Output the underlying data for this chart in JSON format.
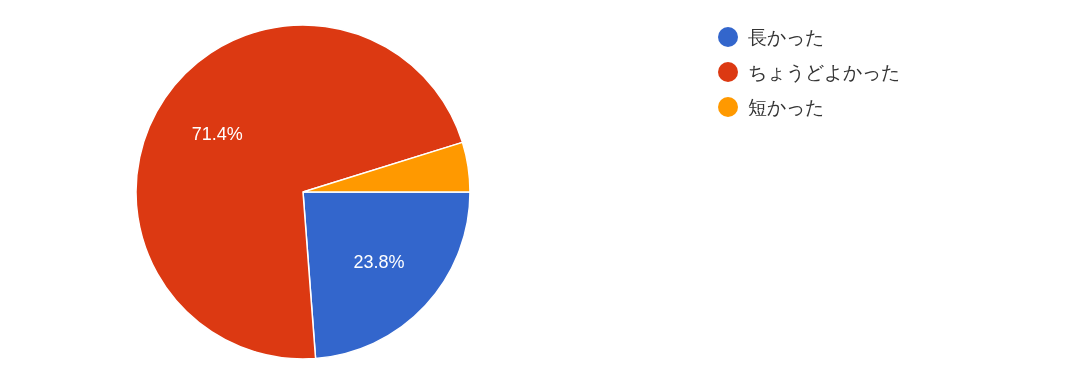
{
  "chart_data": {
    "type": "pie",
    "categories": [
      "長かった",
      "ちょうどよかった",
      "短かった"
    ],
    "values": [
      23.8,
      71.4,
      4.8
    ],
    "colors": [
      "#3366cc",
      "#dc3912",
      "#ff9900"
    ],
    "value_labels": [
      "23.8%",
      "71.4%",
      null
    ],
    "legend": "right"
  }
}
